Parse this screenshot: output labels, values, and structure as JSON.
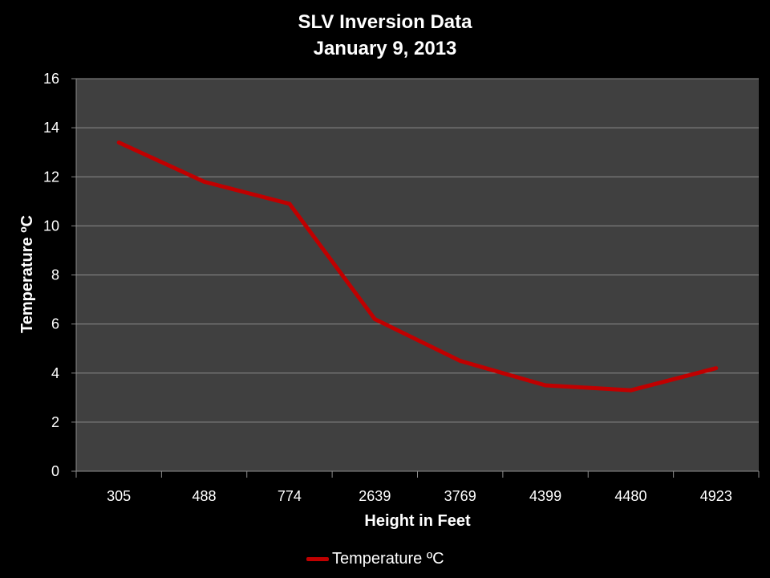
{
  "colors": {
    "background": "#000000",
    "plot_area": "#404040",
    "gridline": "#8c8c8c",
    "series_line": "#c00000",
    "text": "#ffffff"
  },
  "chart_data": {
    "type": "line",
    "title": "SLV Inversion Data",
    "subtitle": "January 9, 2013",
    "xlabel": "Height in Feet",
    "ylabel": "Temperature ºC",
    "categories": [
      "305",
      "488",
      "774",
      "2639",
      "3769",
      "4399",
      "4480",
      "4923"
    ],
    "series": [
      {
        "name": "Temperature ºC",
        "values": [
          13.4,
          11.8,
          10.9,
          6.2,
          4.5,
          3.5,
          3.3,
          4.2
        ]
      }
    ],
    "ylim": [
      0,
      16
    ],
    "yticks": [
      "0",
      "2",
      "4",
      "6",
      "8",
      "10",
      "12",
      "14",
      "16"
    ],
    "grid": true,
    "legend_position": "bottom"
  }
}
